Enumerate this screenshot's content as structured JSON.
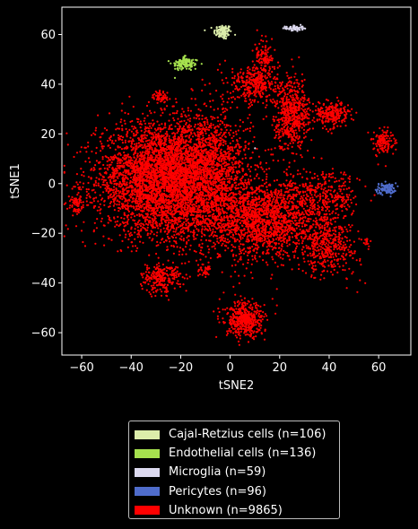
{
  "chart_data": {
    "type": "scatter",
    "xlabel": "tSNE2",
    "ylabel": "tSNE1",
    "xlim": [
      -68,
      73
    ],
    "ylim": [
      -69,
      71
    ],
    "xticks": [
      -60,
      -40,
      -20,
      0,
      20,
      40,
      60
    ],
    "yticks": [
      -60,
      -40,
      -20,
      0,
      20,
      40,
      60
    ],
    "grid": false,
    "legend_placement": "below",
    "series": [
      {
        "name": "Cajal-Retzius cells (n=106)",
        "color": "#dcedaa",
        "count": 106,
        "clusters": [
          {
            "cx": -3,
            "cy": 61,
            "sx": 1.8,
            "sy": 1.5,
            "n": 106
          }
        ]
      },
      {
        "name": "Endothelial cells (n=136)",
        "color": "#a6e14e",
        "count": 136,
        "clusters": [
          {
            "cx": -18,
            "cy": 48,
            "sx": 2.8,
            "sy": 1.3,
            "n": 100
          },
          {
            "cx": -19,
            "cy": 49.5,
            "sx": 1.0,
            "sy": 0.8,
            "n": 36
          }
        ]
      },
      {
        "name": "Microglia (n=59)",
        "color": "#dcd9ef",
        "count": 59,
        "clusters": [
          {
            "cx": 26,
            "cy": 62.5,
            "sx": 1.8,
            "sy": 0.6,
            "n": 58
          },
          {
            "cx": 10,
            "cy": 14,
            "sx": 0.1,
            "sy": 0.1,
            "n": 1
          }
        ]
      },
      {
        "name": "Pericytes (n=96)",
        "color": "#4f6ccb",
        "count": 96,
        "clusters": [
          {
            "cx": 63,
            "cy": -2,
            "sx": 2.0,
            "sy": 1.1,
            "n": 96
          }
        ]
      },
      {
        "name": "Unknown (n=9865)",
        "color": "#ff0000",
        "count": 9865,
        "clusters": [
          {
            "cx": -30,
            "cy": 2,
            "sx": 12,
            "sy": 11,
            "n": 3200
          },
          {
            "cx": -10,
            "cy": 5,
            "sx": 9,
            "sy": 12,
            "n": 1800
          },
          {
            "cx": 10,
            "cy": -15,
            "sx": 9,
            "sy": 8,
            "n": 1100
          },
          {
            "cx": 24,
            "cy": -12,
            "sx": 8,
            "sy": 8,
            "n": 600
          },
          {
            "cx": 40,
            "cy": -25,
            "sx": 6,
            "sy": 6,
            "n": 420
          },
          {
            "cx": 40,
            "cy": -5,
            "sx": 6,
            "sy": 5,
            "n": 260
          },
          {
            "cx": -28,
            "cy": -38,
            "sx": 4,
            "sy": 3,
            "n": 240
          },
          {
            "cx": 6,
            "cy": -55,
            "sx": 4,
            "sy": 3.5,
            "n": 460
          },
          {
            "cx": 25,
            "cy": 28,
            "sx": 3.5,
            "sy": 7,
            "n": 560
          },
          {
            "cx": 41,
            "cy": 28,
            "sx": 3.5,
            "sy": 2.5,
            "n": 240
          },
          {
            "cx": 10,
            "cy": 40,
            "sx": 5,
            "sy": 4,
            "n": 320
          },
          {
            "cx": 14,
            "cy": 50,
            "sx": 2,
            "sy": 4,
            "n": 120
          },
          {
            "cx": -28,
            "cy": 35,
            "sx": 1.5,
            "sy": 1.2,
            "n": 50
          },
          {
            "cx": 62,
            "cy": 17,
            "sx": 2,
            "sy": 2.5,
            "n": 140
          },
          {
            "cx": -62,
            "cy": -8,
            "sx": 1.5,
            "sy": 3,
            "n": 70
          },
          {
            "cx": -10,
            "cy": -35,
            "sx": 1.5,
            "sy": 1.5,
            "n": 40
          },
          {
            "cx": 55,
            "cy": -23,
            "sx": 0.8,
            "sy": 0.8,
            "n": 15
          },
          {
            "cx": -15,
            "cy": -15,
            "sx": 10,
            "sy": 6,
            "n": 230
          }
        ]
      }
    ]
  },
  "legend": {
    "items": [
      {
        "label": "Cajal-Retzius cells (n=106)",
        "color": "#dcedaa"
      },
      {
        "label": "Endothelial cells (n=136)",
        "color": "#a6e14e"
      },
      {
        "label": "Microglia (n=59)",
        "color": "#dcd9ef"
      },
      {
        "label": "Pericytes (n=96)",
        "color": "#4f6ccb"
      },
      {
        "label": "Unknown (n=9865)",
        "color": "#ff0000"
      }
    ]
  }
}
